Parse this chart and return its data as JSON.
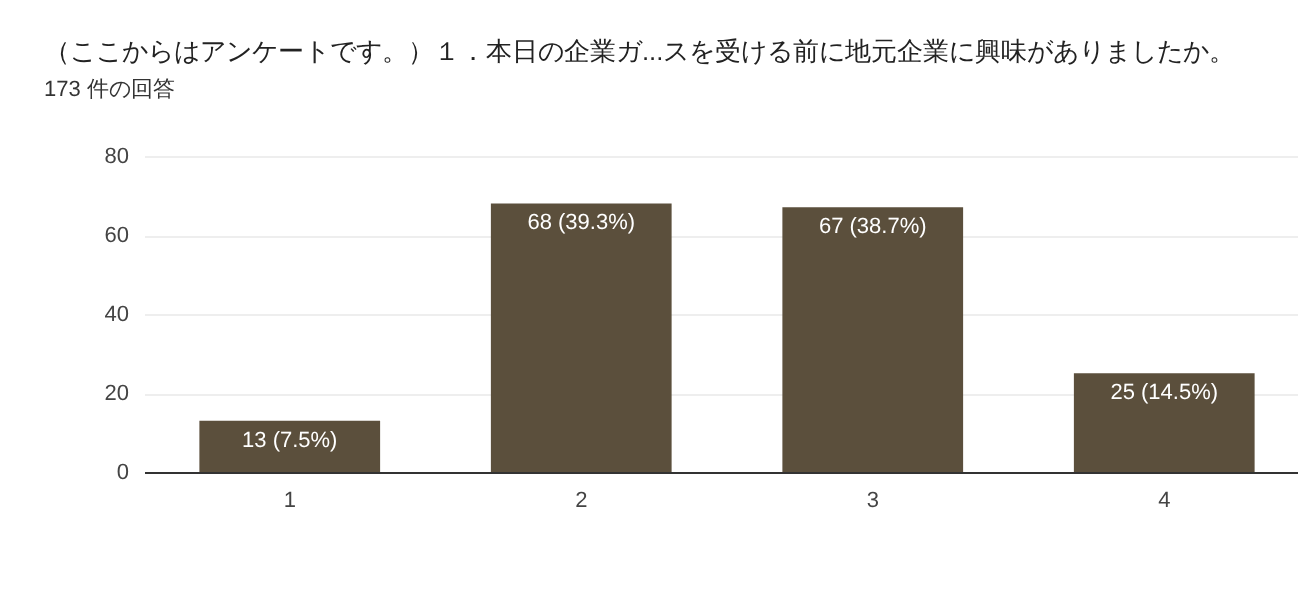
{
  "chart_data": {
    "type": "bar",
    "title": "（ここからはアンケートです。）１．本日の企業ガ...スを受ける前に地元企業に興味がありましたか。",
    "subtitle": "173 件の回答",
    "categories": [
      "1",
      "2",
      "3",
      "4"
    ],
    "values": [
      13,
      68,
      67,
      25
    ],
    "value_labels": [
      "13 (7.5%)",
      "68 (39.3%)",
      "67 (38.7%)",
      "25 (14.5%)"
    ],
    "color": "#5b4f3c",
    "ylim": [
      0,
      80
    ],
    "yticks": [
      0,
      20,
      40,
      60,
      80
    ],
    "grid": true
  }
}
